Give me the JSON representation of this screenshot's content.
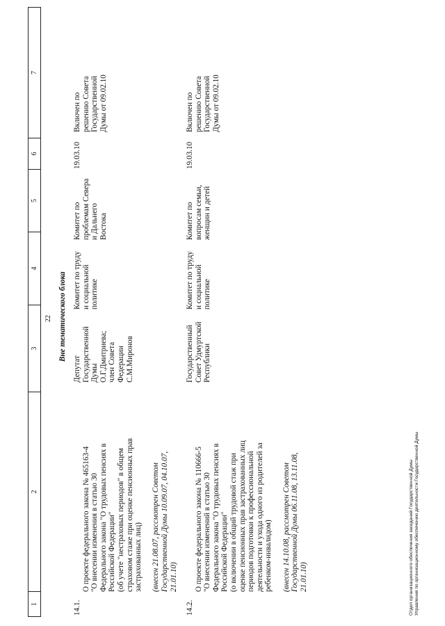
{
  "page_number": "22",
  "header_columns": [
    "1",
    "2",
    "3",
    "4",
    "5",
    "6",
    "7"
  ],
  "section_title": "Вне тематического блока",
  "rows": [
    {
      "number": "14.1.",
      "description": "О проекте федерального закона № 465163-4\n\"О внесении изменения в статью 30\nФедерального закона \"О трудовых пенсиях в\nРоссийской Федерации\"\n(об учете \"нестраховых периодов\" в общем\nстраховом стаже при оценке пенсионных прав\nзастрахованных лиц)",
      "note": "(внесен 21.08.07, рассмотрен Советом\nГосударственной Думы 10.09.07, 04.10.07,\n21.01.10)",
      "initiator": "Депутат\nГосударственной\nДумы\nО.Г.Дмитриева;\nчлен Совета\nФедерации\nС.М.Миронов",
      "responsible_committee": "Комитет по труду\nи социальной\nполитике",
      "co_committee": "Комитет по\nпроблемам Севера\nи Дальнего\nВостока",
      "date": "19.03.10",
      "status": "Включен по\nрешению Совета\nГосударственной\nДумы от 09.02.10"
    },
    {
      "number": "14.2.",
      "description": "О проекте федерального закона № 110666-5\n\"О внесении изменений в статью 30\nФедерального закона \"О трудовых пенсиях в\nРоссийской Федерации\"\n(о включении в общий трудовой стаж при\nоценке пенсионных прав застрахованных лиц\nпериодов подготовки к профессиональной\nдеятельности и ухода одного из родителей за\nребенком-инвалидом)",
      "note": "(внесен 14.10.08, рассмотрен Советом\nГосударственной Думы 06.11.08, 13.11.08,\n21.01.10)",
      "initiator": "Государственный\nСовет Удмуртской\nРеспублики",
      "responsible_committee": "Комитет по труду\nи социальной\nполитике",
      "co_committee": "Комитет по\nвопросам семьи,\nженщин и детей",
      "date": "19.03.10",
      "status": "Включен по\nрешению Совета\nГосударственной\nДумы от 09.02.10"
    }
  ],
  "footer": {
    "line1": "Отдел организационного обеспечения заседаний Государственной Думы",
    "line2": "Управления по организационному обеспечению деятельности Государственной Думы"
  }
}
